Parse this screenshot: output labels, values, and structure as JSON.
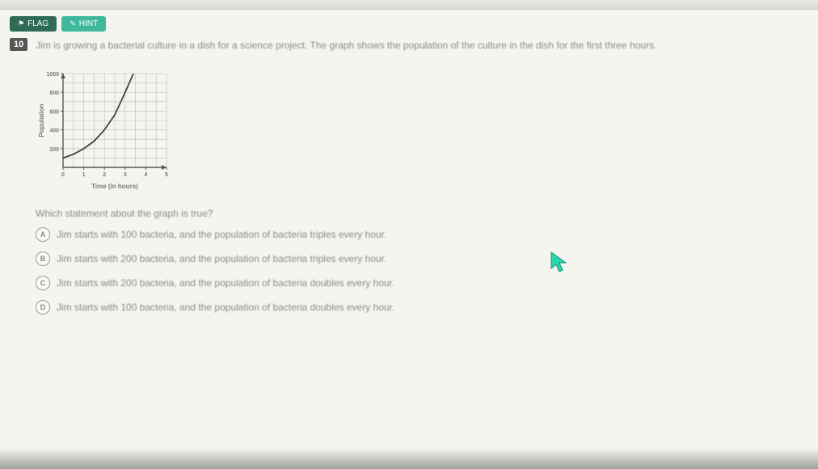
{
  "toolbar": {
    "flag": {
      "icon": "⚑",
      "label": "FLAG",
      "bg": "#2f6b57"
    },
    "hint": {
      "icon": "✎",
      "label": "HINT",
      "bg": "#3fb89e"
    }
  },
  "question": {
    "number": "10",
    "text": "Jim is growing a bacterial culture in a dish for a science project. The graph shows the population of the culture in the dish for the first three hours."
  },
  "chart": {
    "width": 170,
    "height": 150,
    "bg": "#f5f5f0",
    "grid_color": "#bdbdb8",
    "axis_color": "#555553",
    "curve_color": "#444442",
    "x_label": "Time (in hours)",
    "y_label": "Population",
    "x_ticks": [
      "0",
      "1",
      "2",
      "3",
      "4",
      "5"
    ],
    "y_ticks": [
      "200",
      "400",
      "600",
      "800",
      "1000"
    ],
    "x_max": 5,
    "y_max": 1000,
    "curve_points": [
      [
        0,
        100
      ],
      [
        0.5,
        140
      ],
      [
        1,
        200
      ],
      [
        1.5,
        280
      ],
      [
        2,
        400
      ],
      [
        2.5,
        560
      ],
      [
        3,
        800
      ],
      [
        3.2,
        900
      ],
      [
        3.4,
        1000
      ]
    ]
  },
  "sub_question": "Which statement about the graph is true?",
  "options": [
    {
      "letter": "A",
      "text": "Jim starts with 100 bacteria, and the population of bacteria triples every hour."
    },
    {
      "letter": "B",
      "text": "Jim starts with 200 bacteria, and the population of bacteria triples every hour."
    },
    {
      "letter": "C",
      "text": "Jim starts with 200 bacteria, and the population of bacteria doubles every hour."
    },
    {
      "letter": "D",
      "text": "Jim starts with 100 bacteria, and the population of bacteria doubles every hour."
    }
  ],
  "cursor_color": "#26d9b0"
}
